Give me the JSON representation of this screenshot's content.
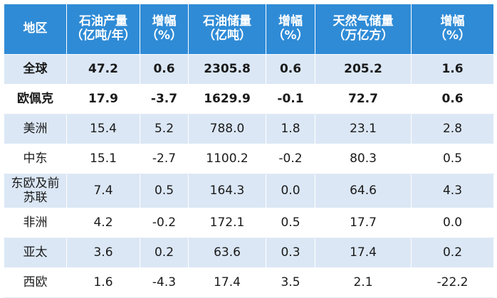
{
  "table": {
    "headers": [
      {
        "line1": "地区",
        "line2": ""
      },
      {
        "line1": "石油产量",
        "line2": "（亿吨/年）"
      },
      {
        "line1": "增幅",
        "line2": "（%）"
      },
      {
        "line1": "石油储量",
        "line2": "（亿吨）"
      },
      {
        "line1": "增幅",
        "line2": "（%）"
      },
      {
        "line1": "天然气储量",
        "line2": "（万亿方）"
      },
      {
        "line1": "增幅",
        "line2": "（%）"
      }
    ],
    "rows": [
      {
        "region": "全球",
        "oil_production": "47.2",
        "oil_production_growth": "0.6",
        "oil_reserves": "2305.8",
        "oil_reserves_growth": "0.6",
        "gas_reserves": "205.2",
        "gas_reserves_growth": "1.6"
      },
      {
        "region": "欧佩克",
        "oil_production": "17.9",
        "oil_production_growth": "-3.7",
        "oil_reserves": "1629.9",
        "oil_reserves_growth": "-0.1",
        "gas_reserves": "72.7",
        "gas_reserves_growth": "0.6"
      },
      {
        "region": "美洲",
        "oil_production": "15.4",
        "oil_production_growth": "5.2",
        "oil_reserves": "788.0",
        "oil_reserves_growth": "1.8",
        "gas_reserves": "23.1",
        "gas_reserves_growth": "2.8"
      },
      {
        "region": "中东",
        "oil_production": "15.1",
        "oil_production_growth": "-2.7",
        "oil_reserves": "1100.2",
        "oil_reserves_growth": "-0.2",
        "gas_reserves": "80.3",
        "gas_reserves_growth": "0.5"
      },
      {
        "region": "东欧及前苏联",
        "oil_production": "7.4",
        "oil_production_growth": "0.5",
        "oil_reserves": "164.3",
        "oil_reserves_growth": "0.0",
        "gas_reserves": "64.6",
        "gas_reserves_growth": "4.3"
      },
      {
        "region": "非洲",
        "oil_production": "4.2",
        "oil_production_growth": "-0.2",
        "oil_reserves": "172.1",
        "oil_reserves_growth": "0.5",
        "gas_reserves": "17.7",
        "gas_reserves_growth": "0.0"
      },
      {
        "region": "亚太",
        "oil_production": "3.6",
        "oil_production_growth": "0.2",
        "oil_reserves": "63.6",
        "oil_reserves_growth": "0.3",
        "gas_reserves": "17.4",
        "gas_reserves_growth": "0.2"
      },
      {
        "region": "西欧",
        "oil_production": "1.6",
        "oil_production_growth": "-4.3",
        "oil_reserves": "17.4",
        "oil_reserves_growth": "3.5",
        "gas_reserves": "2.1",
        "gas_reserves_growth": "-22.2"
      }
    ]
  },
  "colors": {
    "header_bg": "#2f8bd6",
    "header_text": "#ffffff",
    "stripe_bg": "#dbe7f5",
    "row_bg": "#ffffff"
  }
}
